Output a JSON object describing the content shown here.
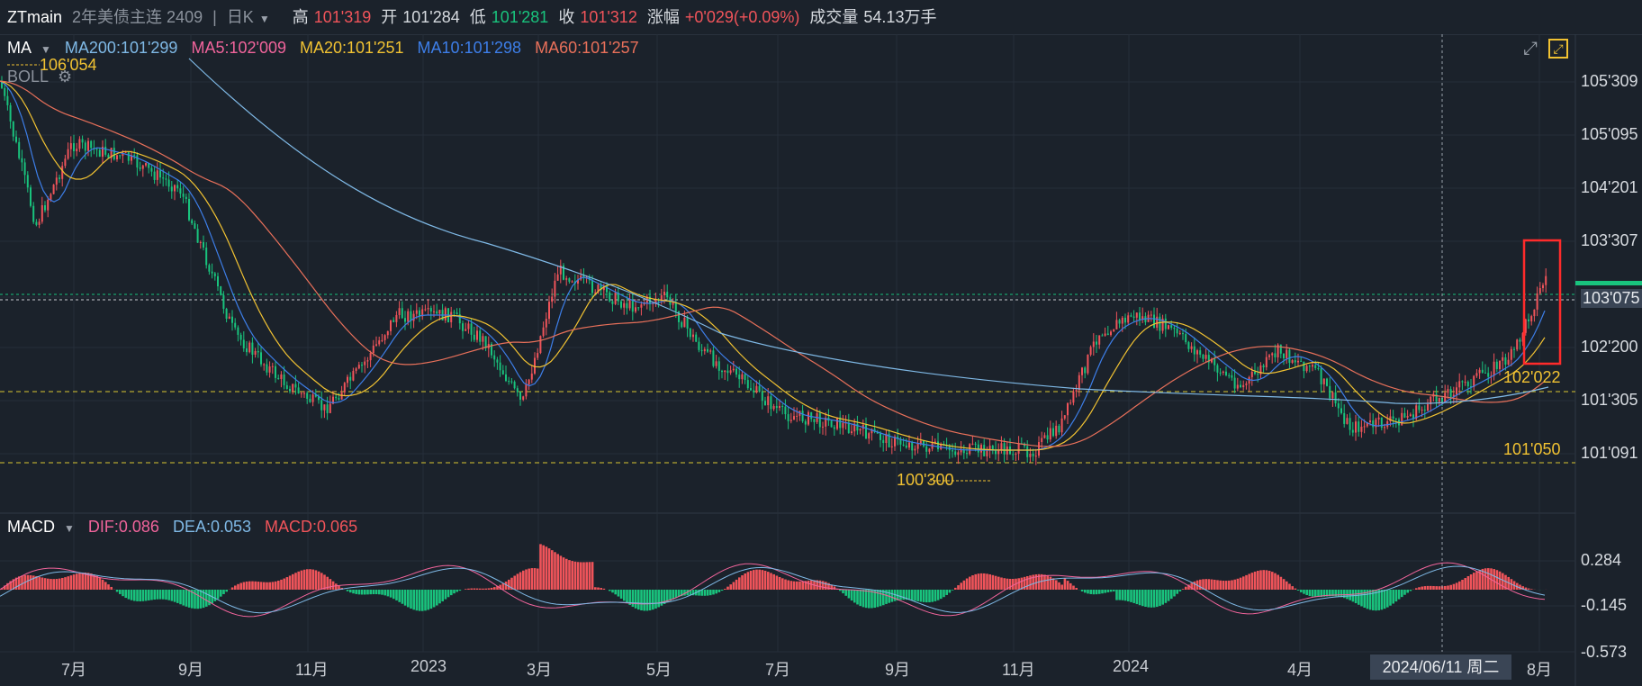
{
  "header": {
    "symbol": "ZTmain",
    "contract": "2年美债主连 2409",
    "period": "日K",
    "high_label": "高",
    "high": "101'319",
    "open_label": "开",
    "open": "101'284",
    "low_label": "低",
    "low": "101'281",
    "close_label": "收",
    "close": "101'312",
    "change_label": "涨幅",
    "change": "+0'029(+0.09%)",
    "volume_label": "成交量",
    "volume": "54.13万手"
  },
  "main_legend": {
    "indicator": "MA",
    "ma200": "MA200:101'299",
    "ma5": "MA5:102'009",
    "ma20": "MA20:101'251",
    "ma10": "MA10:101'298",
    "ma60": "MA60:101'257",
    "boll": "BOLL",
    "max_marker": "106'054"
  },
  "annotations": {
    "low_marker": "100'300",
    "level_upper": "102'022",
    "level_lower": "101'050"
  },
  "y_axis": [
    "105'309",
    "105'095",
    "104'201",
    "103'307",
    "103'075",
    "102'200",
    "101'305",
    "101'091"
  ],
  "macd_legend": {
    "indicator": "MACD",
    "dif": "DIF:0.086",
    "dea": "DEA:0.053",
    "macd": "MACD:0.065"
  },
  "macd_axis": [
    "0.284",
    "-0.145",
    "-0.573"
  ],
  "x_axis": [
    "7月",
    "9月",
    "11月",
    "2023",
    "3月",
    "5月",
    "7月",
    "9月",
    "11月",
    "2024",
    "4月",
    "8月"
  ],
  "crosshair_date": "2024/06/11 周二",
  "colors": {
    "up": "#f0545a",
    "down": "#19c37d",
    "ma200": "#7fb9e6",
    "ma5": "#f0649b",
    "ma20": "#f1c232",
    "ma10": "#3d7ee8",
    "ma60": "#e8705a",
    "boll": "#8b929c"
  },
  "icons": [
    "settings-gear-icon",
    "expand-arrows-icon",
    "fullscreen-icon",
    "dropdown-caret-icon"
  ]
}
